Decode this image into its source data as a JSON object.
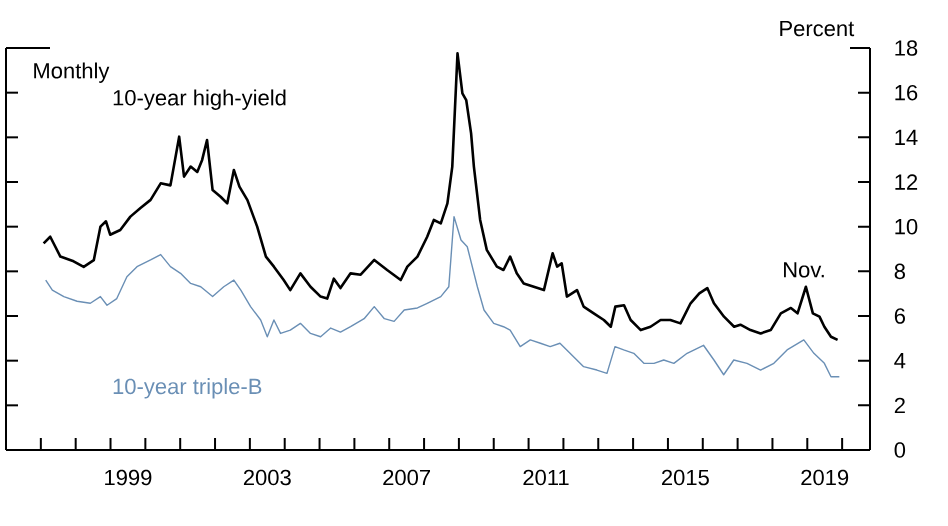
{
  "chart_data": {
    "type": "line",
    "ylabel": "Percent",
    "annotations": [
      "Monthly",
      {
        "text": "Nov.",
        "x": 2019.83,
        "y": 4.93
      }
    ],
    "x": [
      1997.08,
      1997.27,
      1997.56,
      1997.94,
      1998.23,
      1998.52,
      1998.71,
      1998.87,
      1998.99,
      1999.28,
      1999.57,
      1999.86,
      2000.15,
      2000.44,
      2000.72,
      2000.97,
      2001.11,
      2001.3,
      2001.49,
      2001.63,
      2001.77,
      2001.93,
      2002.16,
      2002.35,
      2002.54,
      2002.7,
      2002.93,
      2003.21,
      2003.46,
      2003.69,
      2003.97,
      2004.16,
      2004.45,
      2004.74,
      2005.03,
      2005.22,
      2005.41,
      2005.6,
      2005.89,
      2006.18,
      2006.57,
      2006.94,
      2007.33,
      2007.52,
      2007.81,
      2008.09,
      2008.28,
      2008.48,
      2008.67,
      2008.81,
      2008.96,
      2009.1,
      2009.21,
      2009.35,
      2009.43,
      2009.61,
      2009.8,
      2010.09,
      2010.28,
      2010.47,
      2010.66,
      2010.86,
      2011.15,
      2011.44,
      2011.69,
      2011.82,
      2011.95,
      2012.1,
      2012.39,
      2012.58,
      2012.87,
      2013.16,
      2013.36,
      2013.49,
      2013.74,
      2013.93,
      2014.22,
      2014.5,
      2014.79,
      2015.07,
      2015.36,
      2015.65,
      2015.9,
      2016.13,
      2016.32,
      2016.61,
      2016.9,
      2017.08,
      2017.37,
      2017.66,
      2017.95,
      2018.24,
      2018.53,
      2018.72,
      2018.96,
      2019.16,
      2019.35,
      2019.49,
      2019.68,
      2019.87
    ],
    "series": [
      {
        "name": "10-year high-yield",
        "color": "#000000",
        "values": [
          9.25,
          9.55,
          8.66,
          8.45,
          8.2,
          8.5,
          10.0,
          10.24,
          9.64,
          9.85,
          10.45,
          10.84,
          11.2,
          11.94,
          11.85,
          14.03,
          12.24,
          12.69,
          12.45,
          12.99,
          13.88,
          11.64,
          11.34,
          11.04,
          12.54,
          11.79,
          11.19,
          10.0,
          8.66,
          8.21,
          7.61,
          7.16,
          7.91,
          7.31,
          6.87,
          6.78,
          7.67,
          7.25,
          7.91,
          7.85,
          8.51,
          8.06,
          7.61,
          8.21,
          8.66,
          9.55,
          10.3,
          10.15,
          11.04,
          12.69,
          17.76,
          15.97,
          15.67,
          14.18,
          12.69,
          10.3,
          8.96,
          8.21,
          8.06,
          8.66,
          7.91,
          7.46,
          7.31,
          7.16,
          8.81,
          8.21,
          8.36,
          6.87,
          7.16,
          6.42,
          6.12,
          5.82,
          5.52,
          6.42,
          6.48,
          5.82,
          5.37,
          5.52,
          5.82,
          5.82,
          5.67,
          6.57,
          7.01,
          7.25,
          6.57,
          5.97,
          5.52,
          5.61,
          5.37,
          5.22,
          5.37,
          6.12,
          6.36,
          6.12,
          7.31,
          6.12,
          5.97,
          5.52,
          5.07,
          4.93
        ]
      },
      {
        "name": "10-year triple-B",
        "color": "#6a8fb5",
        "x": [
          1997.14,
          1997.33,
          1997.66,
          1998.04,
          1998.42,
          1998.71,
          1998.9,
          1999.18,
          1999.47,
          1999.76,
          2000.15,
          2000.44,
          2000.72,
          2001.01,
          2001.3,
          2001.59,
          2001.93,
          2002.25,
          2002.54,
          2002.74,
          2003.02,
          2003.31,
          2003.5,
          2003.69,
          2003.88,
          2004.16,
          2004.45,
          2004.74,
          2005.03,
          2005.32,
          2005.6,
          2005.89,
          2006.28,
          2006.57,
          2006.86,
          2007.14,
          2007.43,
          2007.81,
          2008.09,
          2008.48,
          2008.71,
          2008.86,
          2009.06,
          2009.24,
          2009.53,
          2009.72,
          2010.0,
          2010.28,
          2010.47,
          2010.76,
          2011.05,
          2011.34,
          2011.62,
          2011.9,
          2012.19,
          2012.58,
          2012.96,
          2013.25,
          2013.48,
          2013.73,
          2014.02,
          2014.31,
          2014.6,
          2014.88,
          2015.17,
          2015.55,
          2016.02,
          2016.32,
          2016.6,
          2016.89,
          2017.27,
          2017.66,
          2018.04,
          2018.42,
          2018.9,
          2019.19,
          2019.49,
          2019.68,
          2019.92
        ],
        "values": [
          7.61,
          7.16,
          6.87,
          6.66,
          6.57,
          6.87,
          6.48,
          6.78,
          7.76,
          8.21,
          8.51,
          8.75,
          8.21,
          7.91,
          7.46,
          7.31,
          6.87,
          7.31,
          7.61,
          7.16,
          6.42,
          5.82,
          5.07,
          5.82,
          5.22,
          5.37,
          5.67,
          5.22,
          5.07,
          5.46,
          5.28,
          5.52,
          5.88,
          6.42,
          5.88,
          5.76,
          6.27,
          6.36,
          6.57,
          6.87,
          7.31,
          10.45,
          9.4,
          9.1,
          7.31,
          6.27,
          5.67,
          5.52,
          5.37,
          4.63,
          4.93,
          4.78,
          4.63,
          4.78,
          4.33,
          3.73,
          3.58,
          3.43,
          4.63,
          4.48,
          4.33,
          3.88,
          3.88,
          4.03,
          3.88,
          4.33,
          4.69,
          4.03,
          3.37,
          4.03,
          3.88,
          3.58,
          3.88,
          4.48,
          4.93,
          4.33,
          3.88,
          3.28,
          3.28
        ]
      }
    ],
    "xlim": [
      1996,
      2020.8
    ],
    "xticks": [
      {
        "value": 1997,
        "label": null
      },
      {
        "value": 1998,
        "label": null
      },
      {
        "value": 1999,
        "label": null
      },
      {
        "value": 2000,
        "label": null
      },
      {
        "value": 2001,
        "label": null
      },
      {
        "value": 2002,
        "label": null
      },
      {
        "value": 2003,
        "label": null
      },
      {
        "value": 2004,
        "label": null
      },
      {
        "value": 2005,
        "label": null
      },
      {
        "value": 2006,
        "label": null
      },
      {
        "value": 2007,
        "label": null
      },
      {
        "value": 2008,
        "label": null
      },
      {
        "value": 2009,
        "label": null
      },
      {
        "value": 2010,
        "label": null
      },
      {
        "value": 2011,
        "label": null
      },
      {
        "value": 2012,
        "label": null
      },
      {
        "value": 2013,
        "label": null
      },
      {
        "value": 2014,
        "label": null
      },
      {
        "value": 2015,
        "label": null
      },
      {
        "value": 2016,
        "label": null
      },
      {
        "value": 2017,
        "label": null
      },
      {
        "value": 2018,
        "label": null
      },
      {
        "value": 2019,
        "label": null
      },
      {
        "value": 2020,
        "label": null
      },
      {
        "value": 1999.5,
        "label": "1999"
      },
      {
        "value": 2003.5,
        "label": "2003"
      },
      {
        "value": 2007.5,
        "label": "2007"
      },
      {
        "value": 2011.5,
        "label": "2011"
      },
      {
        "value": 2015.5,
        "label": "2015"
      },
      {
        "value": 2019.5,
        "label": "2019"
      }
    ],
    "ylim": [
      0,
      18
    ],
    "yticks": [
      0,
      2,
      4,
      6,
      8,
      10,
      12,
      14,
      16,
      18
    ],
    "grid": false,
    "legend": false,
    "marker": "none",
    "line_style": "solid"
  }
}
